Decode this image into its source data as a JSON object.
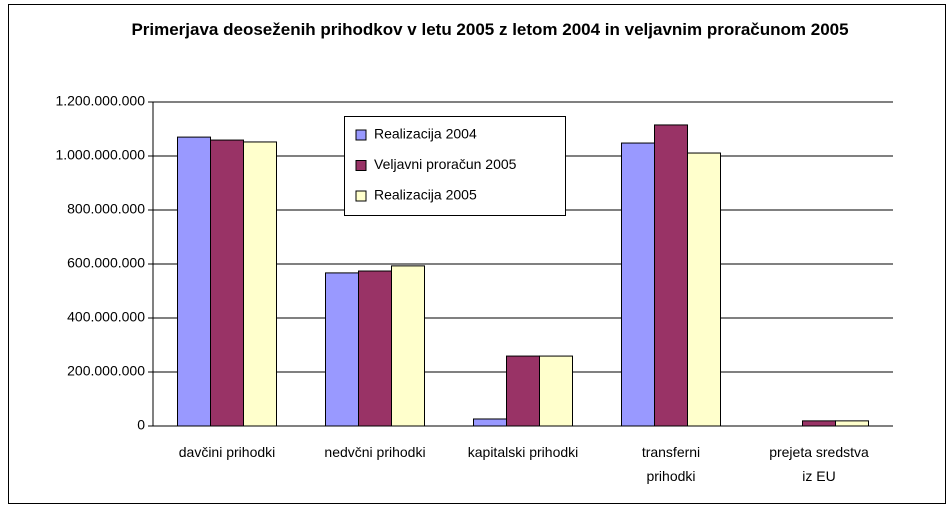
{
  "chart_data": {
    "type": "bar",
    "title": "Primerjava deoseženih prihodkov v letu 2005 z letom 2004 in veljavnim proračunom 2005",
    "categories": [
      [
        "davčini prihodki"
      ],
      [
        "nedvčni prihodki"
      ],
      [
        "kapitalski prihodki"
      ],
      [
        "transferni",
        "prihodki"
      ],
      [
        "prejeta sredstva",
        "iz EU"
      ]
    ],
    "series": [
      {
        "name": "Realizacija 2004",
        "color": "#9999ff",
        "values": [
          1070000000,
          567000000,
          26000000,
          1048000000,
          0
        ]
      },
      {
        "name": "Veljavni proračun 2005",
        "color": "#993366",
        "values": [
          1059000000,
          574000000,
          259000000,
          1115000000,
          19000000
        ]
      },
      {
        "name": "Realizacija 2005",
        "color": "#ffffcc",
        "values": [
          1052000000,
          593000000,
          259000000,
          1011000000,
          19000000
        ]
      }
    ],
    "ylim": [
      0,
      1200000000
    ],
    "yticks": [
      0,
      {
        "value": 200000000,
        "label": "200.000.000"
      },
      {
        "value": 400000000,
        "label": "400.000.000"
      },
      {
        "value": 600000000,
        "label": "600.000.000"
      },
      {
        "value": 800000000,
        "label": "800.000.000"
      },
      {
        "value": 1000000000,
        "label": "1.000.000.000"
      },
      {
        "value": 1200000000,
        "label": "1.200.000.000"
      }
    ],
    "grid": true
  }
}
